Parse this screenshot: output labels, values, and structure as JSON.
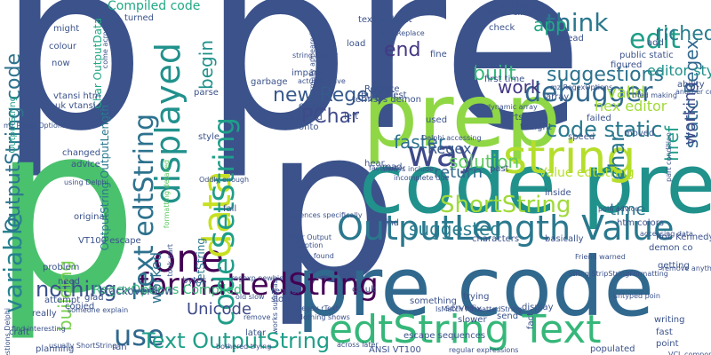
{
  "words": [
    {
      "text": "p",
      "color": "#3b528b"
    },
    {
      "text": "pre",
      "color": "#3b528b"
    },
    {
      "text": "p",
      "color": "#4ac16d"
    },
    {
      "text": "p",
      "color": "#3b528b"
    },
    {
      "text": "prep",
      "color": "#8fd744"
    },
    {
      "text": "code pre",
      "color": "#21918c"
    },
    {
      "text": "pre code",
      "color": "#31688e"
    },
    {
      "text": "edtString Text",
      "color": "#35b779"
    },
    {
      "text": "string",
      "color": "#b5de2b"
    },
    {
      "text": "OutputLength Value",
      "color": "#2a788e"
    },
    {
      "text": "formattedString",
      "color": "#440154"
    },
    {
      "text": "one",
      "color": "#440154"
    },
    {
      "text": "data",
      "color": "#c8e020"
    },
    {
      "text": "displayed",
      "color": "#21918c"
    },
    {
      "text": "way",
      "color": "#3e4a89"
    },
    {
      "text": "code SetString",
      "color": "#1f9e89"
    },
    {
      "text": "Text edtString",
      "color": "#2c728e"
    },
    {
      "text": "variable",
      "color": "#26828e"
    },
    {
      "text": "OutputString code",
      "color": "#2c728e"
    },
    {
      "text": "debugger",
      "color": "#31688e"
    },
    {
      "text": "think",
      "color": "#2a788e"
    },
    {
      "text": "edit",
      "color": "#1f9e89"
    },
    {
      "text": "suggestions",
      "color": "#2c728e"
    },
    {
      "text": "code static",
      "color": "#2a788e"
    },
    {
      "text": "use",
      "color": "#31688e"
    },
    {
      "text": "Text OutputString",
      "color": "#1f9e89"
    },
    {
      "text": "nothing",
      "color": "#3b528b"
    },
    {
      "text": "ShortString",
      "color": "#a0da39"
    },
    {
      "text": "richedit",
      "color": "#287c8e"
    },
    {
      "text": "new Regex",
      "color": "#38598c"
    },
    {
      "text": "end",
      "color": "#443983"
    },
    {
      "text": "built",
      "color": "#35b779"
    },
    {
      "text": "work",
      "color": "#443983"
    },
    {
      "text": "app",
      "color": "#22a884"
    },
    {
      "text": "begin",
      "color": "#21918c"
    },
    {
      "text": "PChar",
      "color": "#3e4a89"
    },
    {
      "text": "building",
      "color": "#7ad151"
    },
    {
      "text": "faster",
      "color": "#2c728e"
    },
    {
      "text": "solution",
      "color": "#5ec962"
    },
    {
      "text": "return",
      "color": "#31688e"
    },
    {
      "text": "suggested",
      "color": "#287c8e"
    },
    {
      "text": "time",
      "color": "#2a788e"
    },
    {
      "text": "Unicode",
      "color": "#3e4a89"
    },
    {
      "text": "Regex",
      "color": "#38598c"
    },
    {
      "text": "char",
      "color": "#2a788e"
    },
    {
      "text": "valid",
      "color": "#a0da39"
    },
    {
      "text": "static Regex",
      "color": "#31688e"
    },
    {
      "text": "href",
      "color": "#1f9e89"
    },
    {
      "text": "working",
      "color": "#3e4a89"
    },
    {
      "text": "editor style",
      "color": "#21918c"
    },
    {
      "text": "hex editor",
      "color": "#a0da39"
    },
    {
      "text": "Value edtString",
      "color": "#b5de2b"
    },
    {
      "text": "worked",
      "color": "#2c728e"
    },
    {
      "text": "Compiled code",
      "color": "#22a884"
    },
    {
      "text": "RegexOptions Compiled",
      "color": "#35b779"
    },
    {
      "text": "stackoverflow",
      "color": "#3b528b"
    },
    {
      "text": "Char OutputData",
      "color": "#22a884"
    },
    {
      "text": "OutputString OutputLength",
      "color": "#2a788e"
    },
    {
      "text": "formatting detailed",
      "color": "#5ec962"
    },
    {
      "text": "SetString",
      "color": "#2a788e"
    },
    {
      "text": "Replace",
      "color": "#3b528b"
    },
    {
      "text": "termsys demon",
      "color": "#3b528b"
    },
    {
      "text": "Telnet client",
      "color": "#3b528b"
    },
    {
      "text": "OutputString",
      "color": "#1f9e89"
    },
    {
      "text": "fine",
      "color": "#3b528b"
    },
    {
      "text": "load",
      "color": "#3b528b"
    },
    {
      "text": "check",
      "color": "#3b528b"
    },
    {
      "text": "text without",
      "color": "#3b528b"
    },
    {
      "text": "colour",
      "color": "#3b528b"
    },
    {
      "text": "might",
      "color": "#3b528b"
    },
    {
      "text": "now",
      "color": "#3b528b"
    },
    {
      "text": "uk vtansi",
      "color": "#3b528b"
    },
    {
      "text": "vtansi htm",
      "color": "#3b528b"
    },
    {
      "text": "mz RegexOptions",
      "color": "#3b528b"
    },
    {
      "text": "changed",
      "color": "#3b528b"
    },
    {
      "text": "advice",
      "color": "#3b528b"
    },
    {
      "text": "original",
      "color": "#3b528b"
    },
    {
      "text": "style",
      "color": "#3b528b"
    },
    {
      "text": "parse",
      "color": "#3b528b"
    },
    {
      "text": "fail",
      "color": "#3b528b"
    },
    {
      "text": "impact",
      "color": "#3b528b"
    },
    {
      "text": "garbage",
      "color": "#3b528b"
    },
    {
      "text": "turned",
      "color": "#3b528b"
    },
    {
      "text": "error",
      "color": "#3b528b"
    },
    {
      "text": "reduced",
      "color": "#3b528b"
    },
    {
      "text": "onto",
      "color": "#3b528b"
    },
    {
      "text": "left",
      "color": "#3b528b"
    },
    {
      "text": "used",
      "color": "#3b528b"
    },
    {
      "text": "sorts",
      "color": "#3b528b"
    },
    {
      "text": "failed",
      "color": "#3b528b"
    },
    {
      "text": "moved",
      "color": "#3b528b"
    },
    {
      "text": "speed",
      "color": "#3b528b"
    },
    {
      "text": "array",
      "color": "#3b528b"
    },
    {
      "text": "figured",
      "color": "#3b528b"
    },
    {
      "text": "public static",
      "color": "#3b528b"
    },
    {
      "text": "instead",
      "color": "#3b528b"
    },
    {
      "text": "add",
      "color": "#3b528b"
    },
    {
      "text": "ability",
      "color": "#3b528b"
    },
    {
      "text": "matter",
      "color": "#3b528b"
    },
    {
      "text": "first time",
      "color": "#3b528b"
    },
    {
      "text": "tonight",
      "color": "#3b528b"
    },
    {
      "text": "build rTest",
      "color": "#3b528b"
    },
    {
      "text": "VT100 escape",
      "color": "#3b528b"
    },
    {
      "text": "problem",
      "color": "#3b528b"
    },
    {
      "text": "need",
      "color": "#3b528b"
    },
    {
      "text": "attempt",
      "color": "#3b528b"
    },
    {
      "text": "copied",
      "color": "#3b528b"
    },
    {
      "text": "bytes",
      "color": "#3b528b"
    },
    {
      "text": "glad",
      "color": "#3b528b"
    },
    {
      "text": "really",
      "color": "#3b528b"
    },
    {
      "text": "craft",
      "color": "#3b528b"
    },
    {
      "text": "planning",
      "color": "#3b528b"
    },
    {
      "text": "ran",
      "color": "#3b528b"
    },
    {
      "text": "later",
      "color": "#3b528b"
    },
    {
      "text": "slow",
      "color": "#3b528b"
    },
    {
      "text": "render",
      "color": "#3b528b"
    },
    {
      "text": "hear",
      "color": "#3b528b"
    },
    {
      "text": "read",
      "color": "#3b528b"
    },
    {
      "text": "find",
      "color": "#3b528b"
    },
    {
      "text": "past",
      "color": "#3b528b"
    },
    {
      "text": "inside",
      "color": "#3b528b"
    },
    {
      "text": "basically",
      "color": "#3b528b"
    },
    {
      "text": "characters",
      "color": "#3b528b"
    },
    {
      "text": "slower",
      "color": "#3b528b"
    },
    {
      "text": "trying",
      "color": "#3b528b"
    },
    {
      "text": "something",
      "color": "#3b528b"
    },
    {
      "text": "server",
      "color": "#3b528b"
    },
    {
      "text": "display",
      "color": "#3b528b"
    },
    {
      "text": "fix",
      "color": "#3b528b"
    },
    {
      "text": "send",
      "color": "#3b528b"
    },
    {
      "text": "escape sequences",
      "color": "#3b528b"
    },
    {
      "text": "ANSI VT100",
      "color": "#3b528b"
    },
    {
      "text": "writing",
      "color": "#3b528b"
    },
    {
      "text": "fast",
      "color": "#3b528b"
    },
    {
      "text": "point",
      "color": "#3b528b"
    },
    {
      "text": "populated",
      "color": "#3b528b"
    },
    {
      "text": "getting",
      "color": "#3b528b"
    },
    {
      "text": "demon co",
      "color": "#3b528b"
    },
    {
      "text": "Rob Kennedy",
      "color": "#3b528b"
    },
    {
      "text": "htm colors",
      "color": "#3b528b"
    },
    {
      "text": "co uk",
      "color": "#3b528b"
    },
    {
      "text": "fact",
      "color": "#3b528b"
    },
    {
      "text": "PChar Output",
      "color": "#3b528b"
    },
    {
      "text": "TCaption",
      "color": "#3b528b"
    },
    {
      "text": "sorta found",
      "color": "#3b528b"
    },
    {
      "text": "Oddly enough",
      "color": "#3b528b"
    },
    {
      "text": "using Delphi",
      "color": "#3b528b"
    },
    {
      "text": "someone explain",
      "color": "#3b528b"
    },
    {
      "text": "old slow",
      "color": "#3b528b"
    },
    {
      "text": "regexp newbie",
      "color": "#3b528b"
    },
    {
      "text": "Nothing shows",
      "color": "#3b528b"
    },
    {
      "text": "Regex rText",
      "color": "#3b528b"
    },
    {
      "text": "IsMatch formattedString",
      "color": "#3b528b"
    },
    {
      "text": "string StripStringFormatting",
      "color": "#3b528b"
    },
    {
      "text": "untyped poin",
      "color": "#3b528b"
    },
    {
      "text": "VCL component",
      "color": "#3b528b"
    },
    {
      "text": "regular expressions",
      "color": "#3b528b"
    },
    {
      "text": "across later",
      "color": "#3b528b"
    },
    {
      "text": "bothered trying",
      "color": "#3b528b"
    },
    {
      "text": "remove",
      "color": "#3b528b"
    },
    {
      "text": "sequences specifically",
      "color": "#3b528b"
    },
    {
      "text": "works superfast",
      "color": "#3b528b"
    },
    {
      "text": "incomplete due",
      "color": "#3b528b"
    },
    {
      "text": "fact faster",
      "color": "#3b528b"
    },
    {
      "text": "always include",
      "color": "#3b528b"
    },
    {
      "text": "Friend warned",
      "color": "#3b528b"
    },
    {
      "text": "poin advice",
      "color": "#3b528b"
    },
    {
      "text": "tried making",
      "color": "#3b528b"
    },
    {
      "text": "rText Replace",
      "color": "#3b528b"
    },
    {
      "text": "string Empty",
      "color": "#3b528b"
    },
    {
      "text": "actually gave",
      "color": "#3b528b"
    },
    {
      "text": "normally appeared",
      "color": "#3b528b"
    },
    {
      "text": "dynamic array",
      "color": "#3b528b"
    },
    {
      "text": "mz RegexOptions",
      "color": "#3b528b"
    },
    {
      "text": "rText IsMatch",
      "color": "#3b528b"
    },
    {
      "text": "come across",
      "color": "#3b528b"
    },
    {
      "text": "usually ShortString",
      "color": "#3b528b"
    },
    {
      "text": "questions Delphi",
      "color": "#3b528b"
    },
    {
      "text": "find interesting",
      "color": "#3b528b"
    },
    {
      "text": "part condition",
      "color": "#3b528b"
    },
    {
      "text": "another condition",
      "color": "#3b528b"
    },
    {
      "text": "Delphi accessing",
      "color": "#3b528b"
    },
    {
      "text": "took part",
      "color": "#3b528b"
    },
    {
      "text": "remove anything",
      "color": "#3b528b"
    },
    {
      "text": "accessing data",
      "color": "#3b528b"
    },
    {
      "text": "VCL TCaption",
      "color": "#3b528b"
    }
  ]
}
